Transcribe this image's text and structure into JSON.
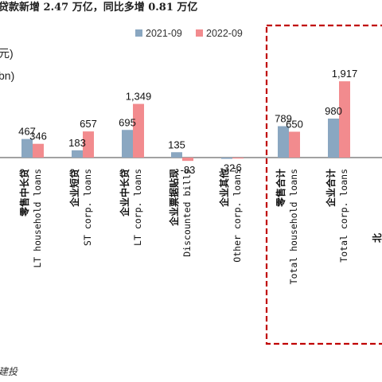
{
  "header": {
    "title": "贷款新增 2.47 万亿，同比多增 0.81 万亿",
    "unit_cn": "元)",
    "unit_en": "bn)"
  },
  "source": {
    "text": "建投"
  },
  "colors": {
    "series_2021": "#8aa7c1",
    "series_2022": "#f28b8e",
    "highlight_box": "#c00000",
    "axis": "#444444"
  },
  "chart_data": {
    "type": "bar",
    "title": "贷款新增 2.47 万亿，同比多增 0.81 万亿",
    "categories": [
      {
        "cn": "零售中长贷",
        "en": "LT household loans"
      },
      {
        "cn": "企业短贷",
        "en": "ST corp. loans"
      },
      {
        "cn": "企业中长贷",
        "en": "LT corp. loans"
      },
      {
        "cn": "企业票据贴现",
        "en": "Discounted bills"
      },
      {
        "cn": "企业其他",
        "en": "Other corp. loans"
      },
      {
        "cn": "零售合计",
        "en": "Total household loans"
      },
      {
        "cn": "企业合计",
        "en": "Total corp. loans"
      }
    ],
    "series": [
      {
        "name": "2021-09",
        "values": [
          467,
          183,
          695,
          135,
          -32,
          789,
          980
        ]
      },
      {
        "name": "2022-09",
        "values": [
          346,
          657,
          1349,
          -83,
          -6,
          650,
          1917
        ]
      }
    ],
    "value_labels": [
      [
        "467",
        "183",
        "695",
        "135",
        "-32",
        "789",
        "980"
      ],
      [
        "346",
        "657",
        "1,349",
        "-83",
        "-6",
        "650",
        "1,917"
      ]
    ],
    "legend_position": "top-center",
    "grid": false,
    "highlighted_categories": [
      5,
      6
    ]
  }
}
